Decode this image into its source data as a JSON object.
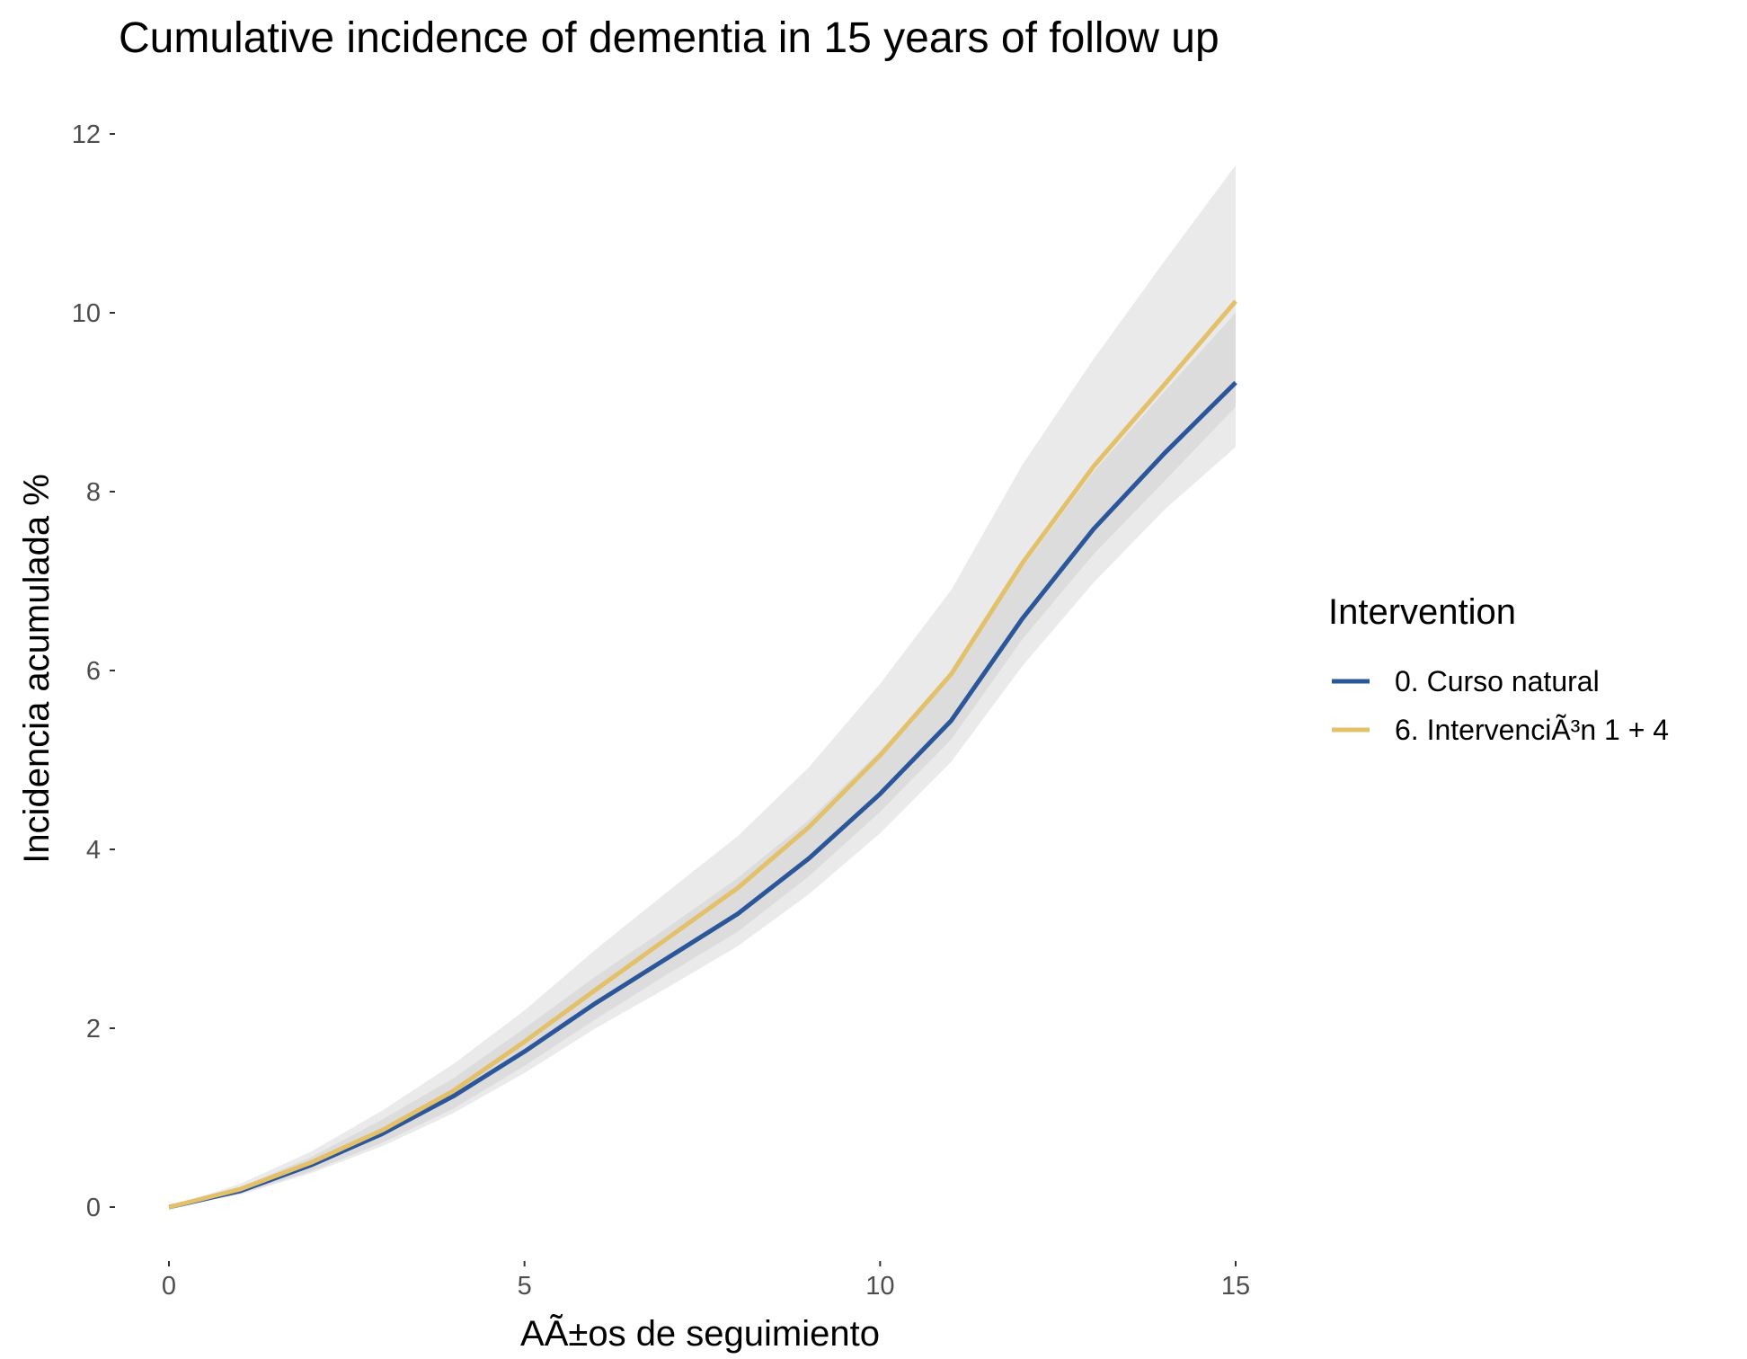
{
  "chart_data": {
    "type": "line",
    "title": "Cumulative incidence of dementia in 15 years of follow up",
    "xlabel": "AÃ±os de seguimiento",
    "ylabel": "Incidencia acumulada %",
    "xlim": [
      0,
      15
    ],
    "ylim": [
      0,
      12
    ],
    "xticks": [
      0,
      5,
      10,
      15
    ],
    "yticks": [
      0,
      2,
      4,
      6,
      8,
      10,
      12
    ],
    "grid": false,
    "legend": {
      "title": "Intervention",
      "position": "right"
    },
    "x": [
      0,
      1,
      2,
      3,
      4,
      5,
      6,
      7,
      8,
      9,
      10,
      11,
      12,
      13,
      14,
      15
    ],
    "series": [
      {
        "name": "0. Curso natural",
        "color": "#2b579a",
        "values": [
          0,
          0.18,
          0.47,
          0.82,
          1.24,
          1.74,
          2.28,
          2.78,
          3.28,
          3.9,
          4.62,
          5.44,
          6.58,
          7.58,
          8.43,
          9.22
        ],
        "ci_lower": [
          0,
          0.14,
          0.38,
          0.68,
          1.05,
          1.5,
          2.0,
          2.45,
          2.92,
          3.5,
          4.18,
          4.98,
          6.05,
          6.98,
          7.8,
          8.5
        ],
        "ci_upper": [
          0,
          0.22,
          0.56,
          0.98,
          1.44,
          2.0,
          2.58,
          3.12,
          3.68,
          4.33,
          5.1,
          5.94,
          7.15,
          8.22,
          9.12,
          10.0
        ]
      },
      {
        "name": "6. IntervenciÃ³n 1 + 4",
        "color": "#e3c06a",
        "values": [
          0,
          0.2,
          0.5,
          0.86,
          1.3,
          1.85,
          2.43,
          3.0,
          3.57,
          4.25,
          5.05,
          5.96,
          7.2,
          8.28,
          9.2,
          10.13
        ],
        "ci_lower": [
          0,
          0.15,
          0.4,
          0.72,
          1.1,
          1.58,
          2.1,
          2.6,
          3.08,
          3.7,
          4.42,
          5.23,
          6.35,
          7.3,
          8.12,
          8.95
        ],
        "ci_upper": [
          0,
          0.26,
          0.62,
          1.08,
          1.6,
          2.2,
          2.88,
          3.52,
          4.15,
          4.92,
          5.85,
          6.9,
          8.3,
          9.48,
          10.58,
          11.65
        ]
      }
    ],
    "ribbon_color": "#bdbdbd",
    "axis_tick_color": "#333333"
  }
}
